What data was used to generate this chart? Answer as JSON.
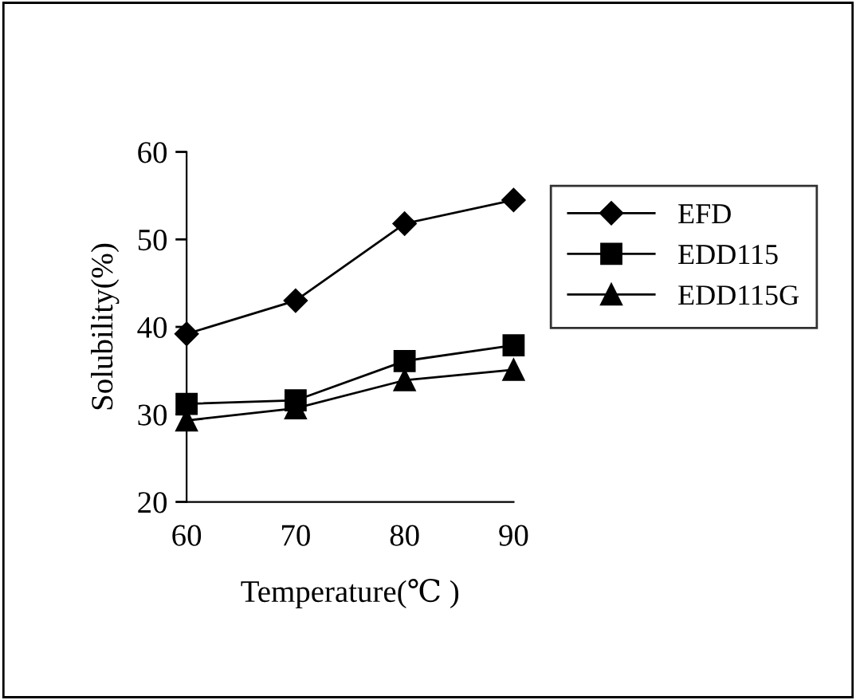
{
  "chart_data": {
    "type": "line",
    "xlabel": "Temperature(℃ )",
    "ylabel": "Solubility(%)",
    "categories": [
      "60",
      "70",
      "80",
      "90"
    ],
    "series": [
      {
        "name": "EFD",
        "color": "#000000",
        "marker": "diamond",
        "values": [
          39.2,
          43.0,
          51.8,
          54.5
        ]
      },
      {
        "name": "EDD115",
        "color": "#000000",
        "marker": "square",
        "values": [
          31.2,
          31.6,
          36.1,
          37.9
        ]
      },
      {
        "name": "EDD115G",
        "color": "#000000",
        "marker": "triangle",
        "values": [
          29.3,
          30.7,
          33.9,
          35.1
        ]
      }
    ],
    "ylim": [
      20,
      60
    ],
    "yticks": [
      20,
      30,
      40,
      50,
      60
    ],
    "grid": false,
    "legend": "right",
    "line_style": "solid"
  }
}
